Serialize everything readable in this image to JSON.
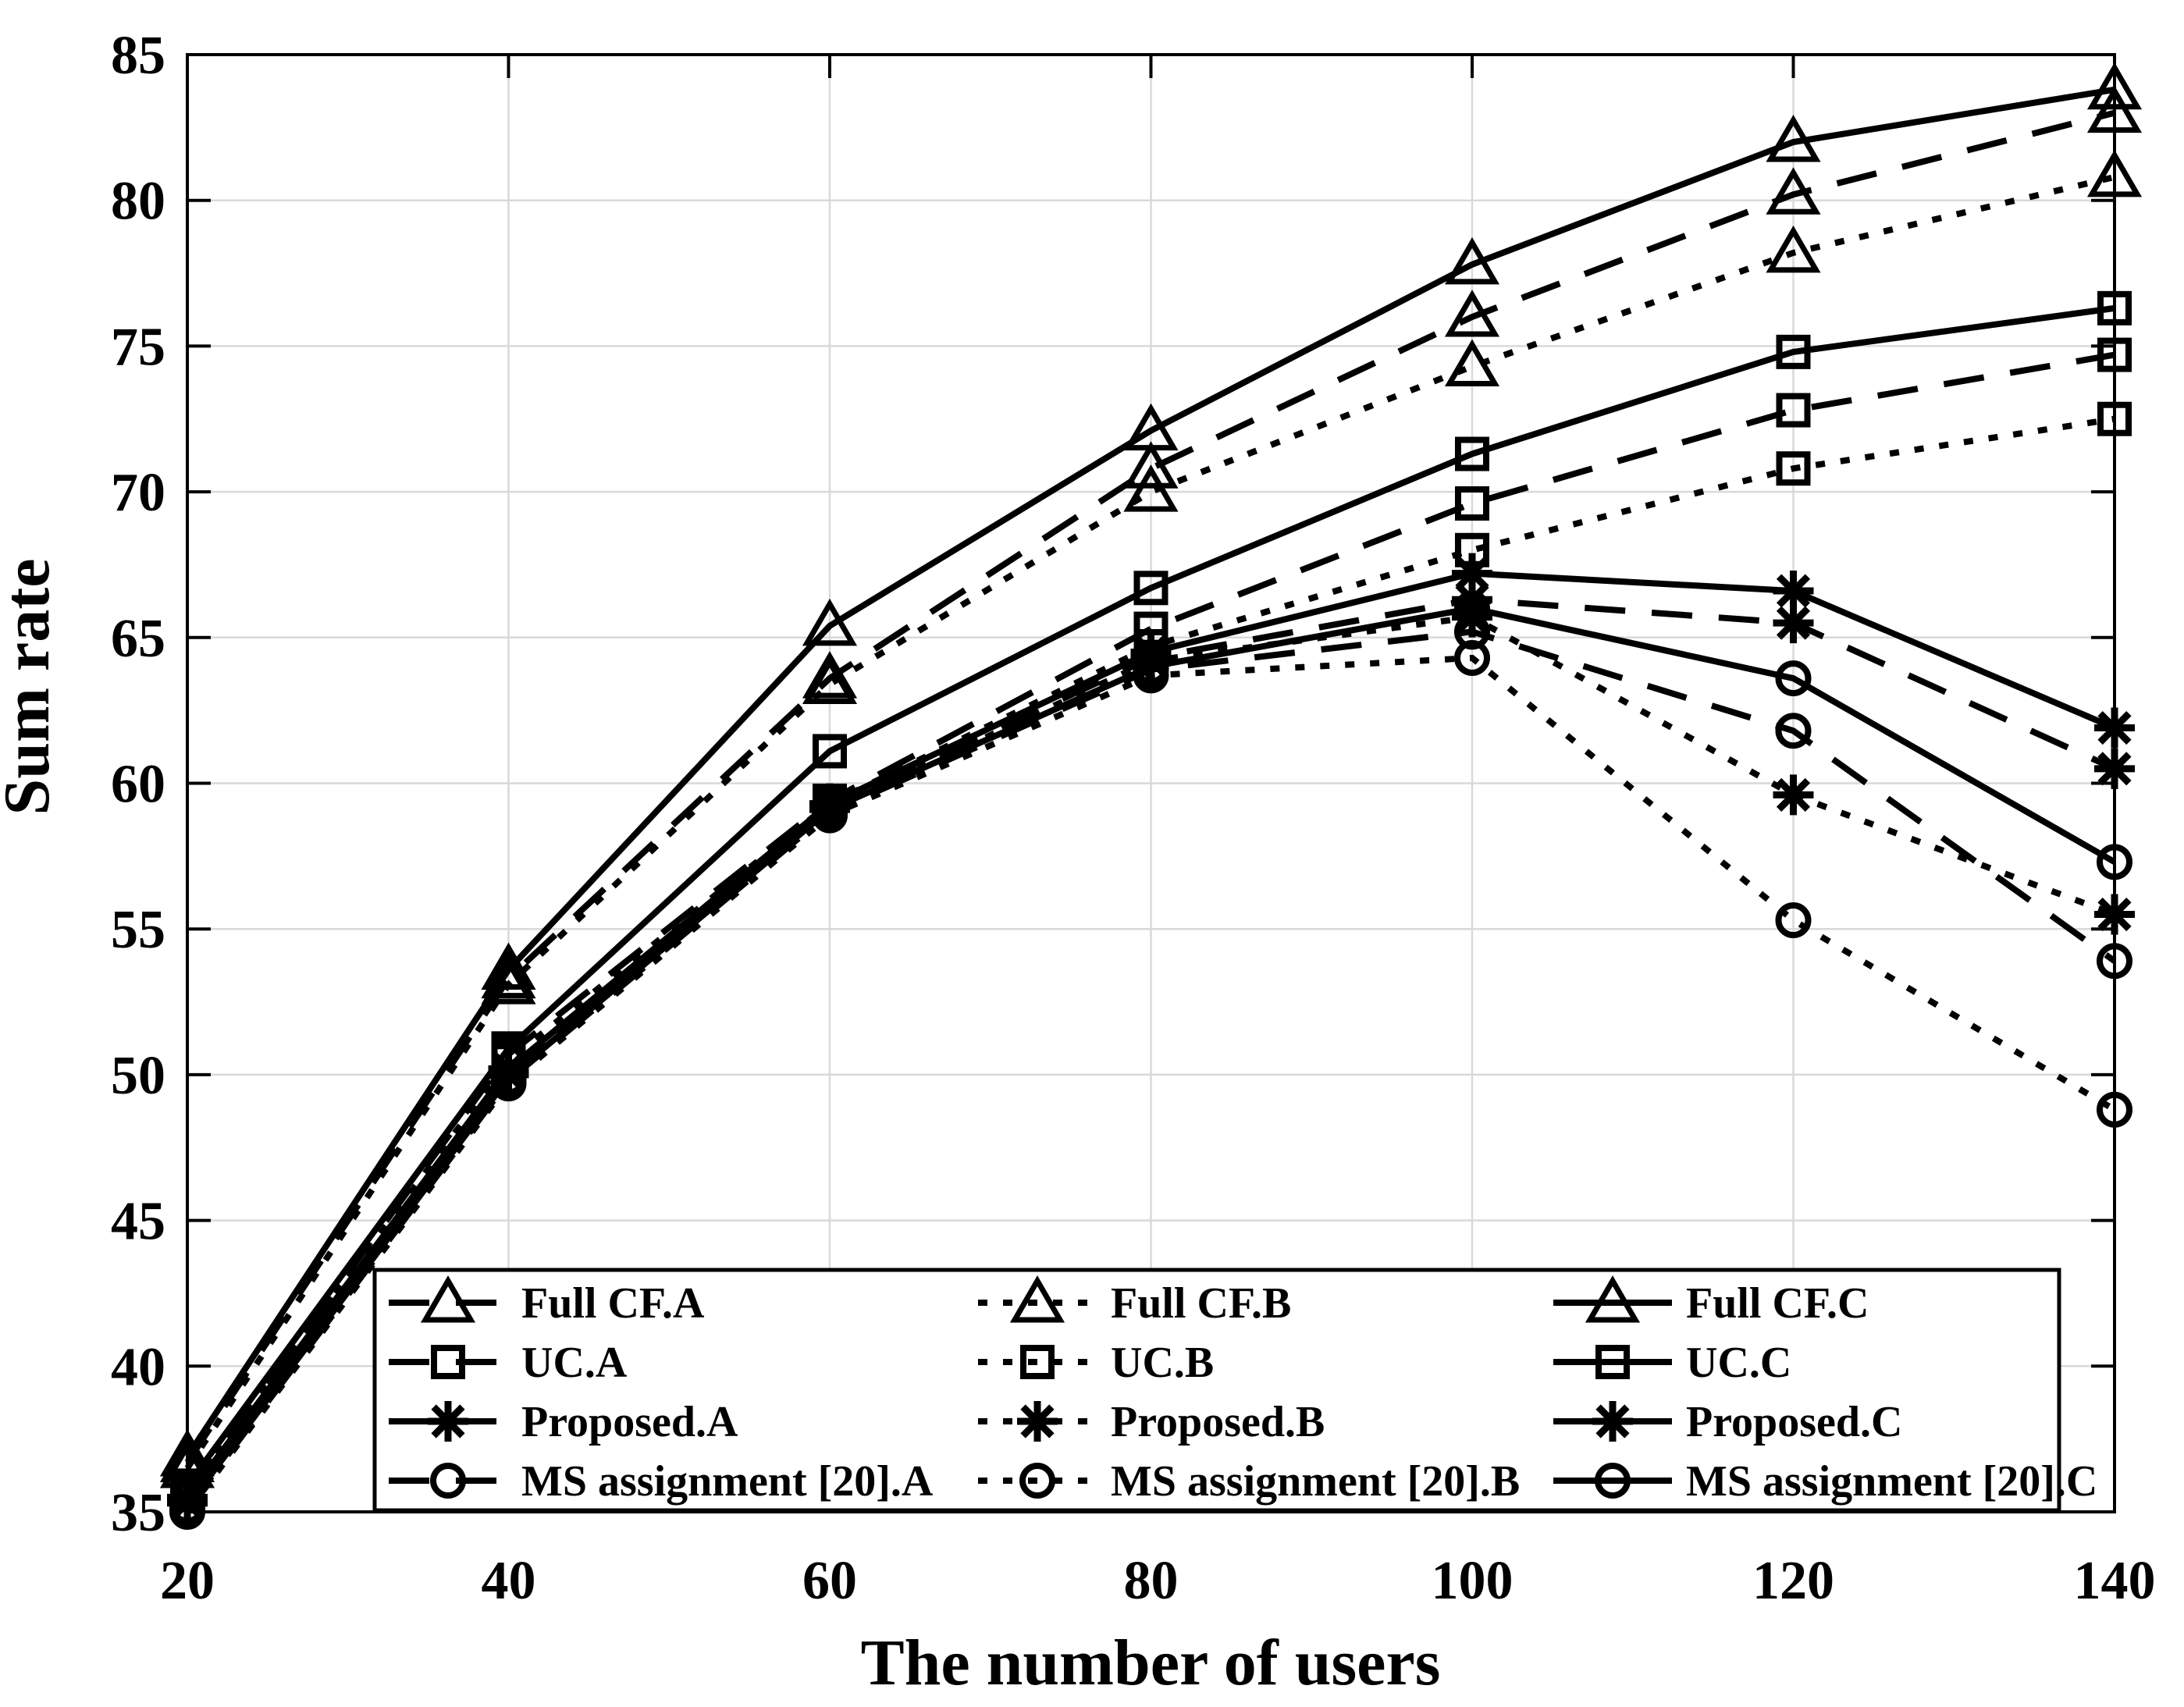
{
  "figure": {
    "background": "#ffffff",
    "axis_color": "#000000",
    "grid_color": "#d9d9d9",
    "line_color": "#000000"
  },
  "chart_data": {
    "type": "line",
    "title": "",
    "xlabel": "The number of users",
    "ylabel": "Sum rate",
    "xlim": [
      20,
      140
    ],
    "ylim": [
      35,
      85
    ],
    "xticks": [
      20,
      40,
      60,
      80,
      100,
      120,
      140
    ],
    "yticks": [
      35,
      40,
      45,
      50,
      55,
      60,
      65,
      70,
      75,
      80,
      85
    ],
    "grid": true,
    "legend_position": "south-inside",
    "legend_columns": 3,
    "x": [
      20,
      40,
      60,
      80,
      100,
      120,
      140
    ],
    "series": [
      {
        "name": "Full CF.A",
        "line": "dashed",
        "marker": "triangle",
        "values": [
          36.7,
          53.3,
          63.6,
          70.8,
          76.0,
          80.2,
          83.0
        ]
      },
      {
        "name": "UC.A",
        "line": "dashed",
        "marker": "square",
        "values": [
          35.7,
          50.7,
          59.4,
          65.3,
          69.6,
          72.8,
          74.7
        ]
      },
      {
        "name": "Proposed.A",
        "line": "dashed",
        "marker": "asterisk",
        "values": [
          35.4,
          50.1,
          59.2,
          64.3,
          66.3,
          65.5,
          60.5
        ]
      },
      {
        "name": "MS assignment [20].A",
        "line": "dashed",
        "marker": "circle",
        "values": [
          35.1,
          49.8,
          59.0,
          63.9,
          65.2,
          61.8,
          53.9
        ]
      },
      {
        "name": "Full CF.B",
        "line": "dotted",
        "marker": "triangle",
        "values": [
          36.5,
          53.1,
          63.4,
          70.0,
          74.3,
          78.2,
          80.8
        ]
      },
      {
        "name": "UC.B",
        "line": "dotted",
        "marker": "square",
        "values": [
          35.6,
          50.5,
          59.3,
          64.7,
          68.0,
          70.8,
          72.5
        ]
      },
      {
        "name": "Proposed.B",
        "line": "dotted",
        "marker": "asterisk",
        "values": [
          35.3,
          50.0,
          59.1,
          64.2,
          65.7,
          59.6,
          55.5
        ]
      },
      {
        "name": "MS assignment [20].B",
        "line": "dotted",
        "marker": "circle",
        "values": [
          35.0,
          49.7,
          58.9,
          63.7,
          64.3,
          55.3,
          48.8
        ]
      },
      {
        "name": "Full CF.C",
        "line": "solid",
        "marker": "triangle",
        "values": [
          36.9,
          53.6,
          65.4,
          72.1,
          77.8,
          82.0,
          83.8
        ]
      },
      {
        "name": "UC.C",
        "line": "solid",
        "marker": "square",
        "values": [
          35.9,
          50.9,
          61.1,
          66.7,
          71.3,
          74.8,
          76.3
        ]
      },
      {
        "name": "Proposed.C",
        "line": "solid",
        "marker": "asterisk",
        "values": [
          35.5,
          50.2,
          59.3,
          64.5,
          67.2,
          66.6,
          61.9
        ]
      },
      {
        "name": "MS assignment [20].C",
        "line": "solid",
        "marker": "circle",
        "values": [
          35.2,
          49.9,
          59.1,
          64.0,
          66.0,
          63.6,
          57.3
        ]
      }
    ]
  }
}
